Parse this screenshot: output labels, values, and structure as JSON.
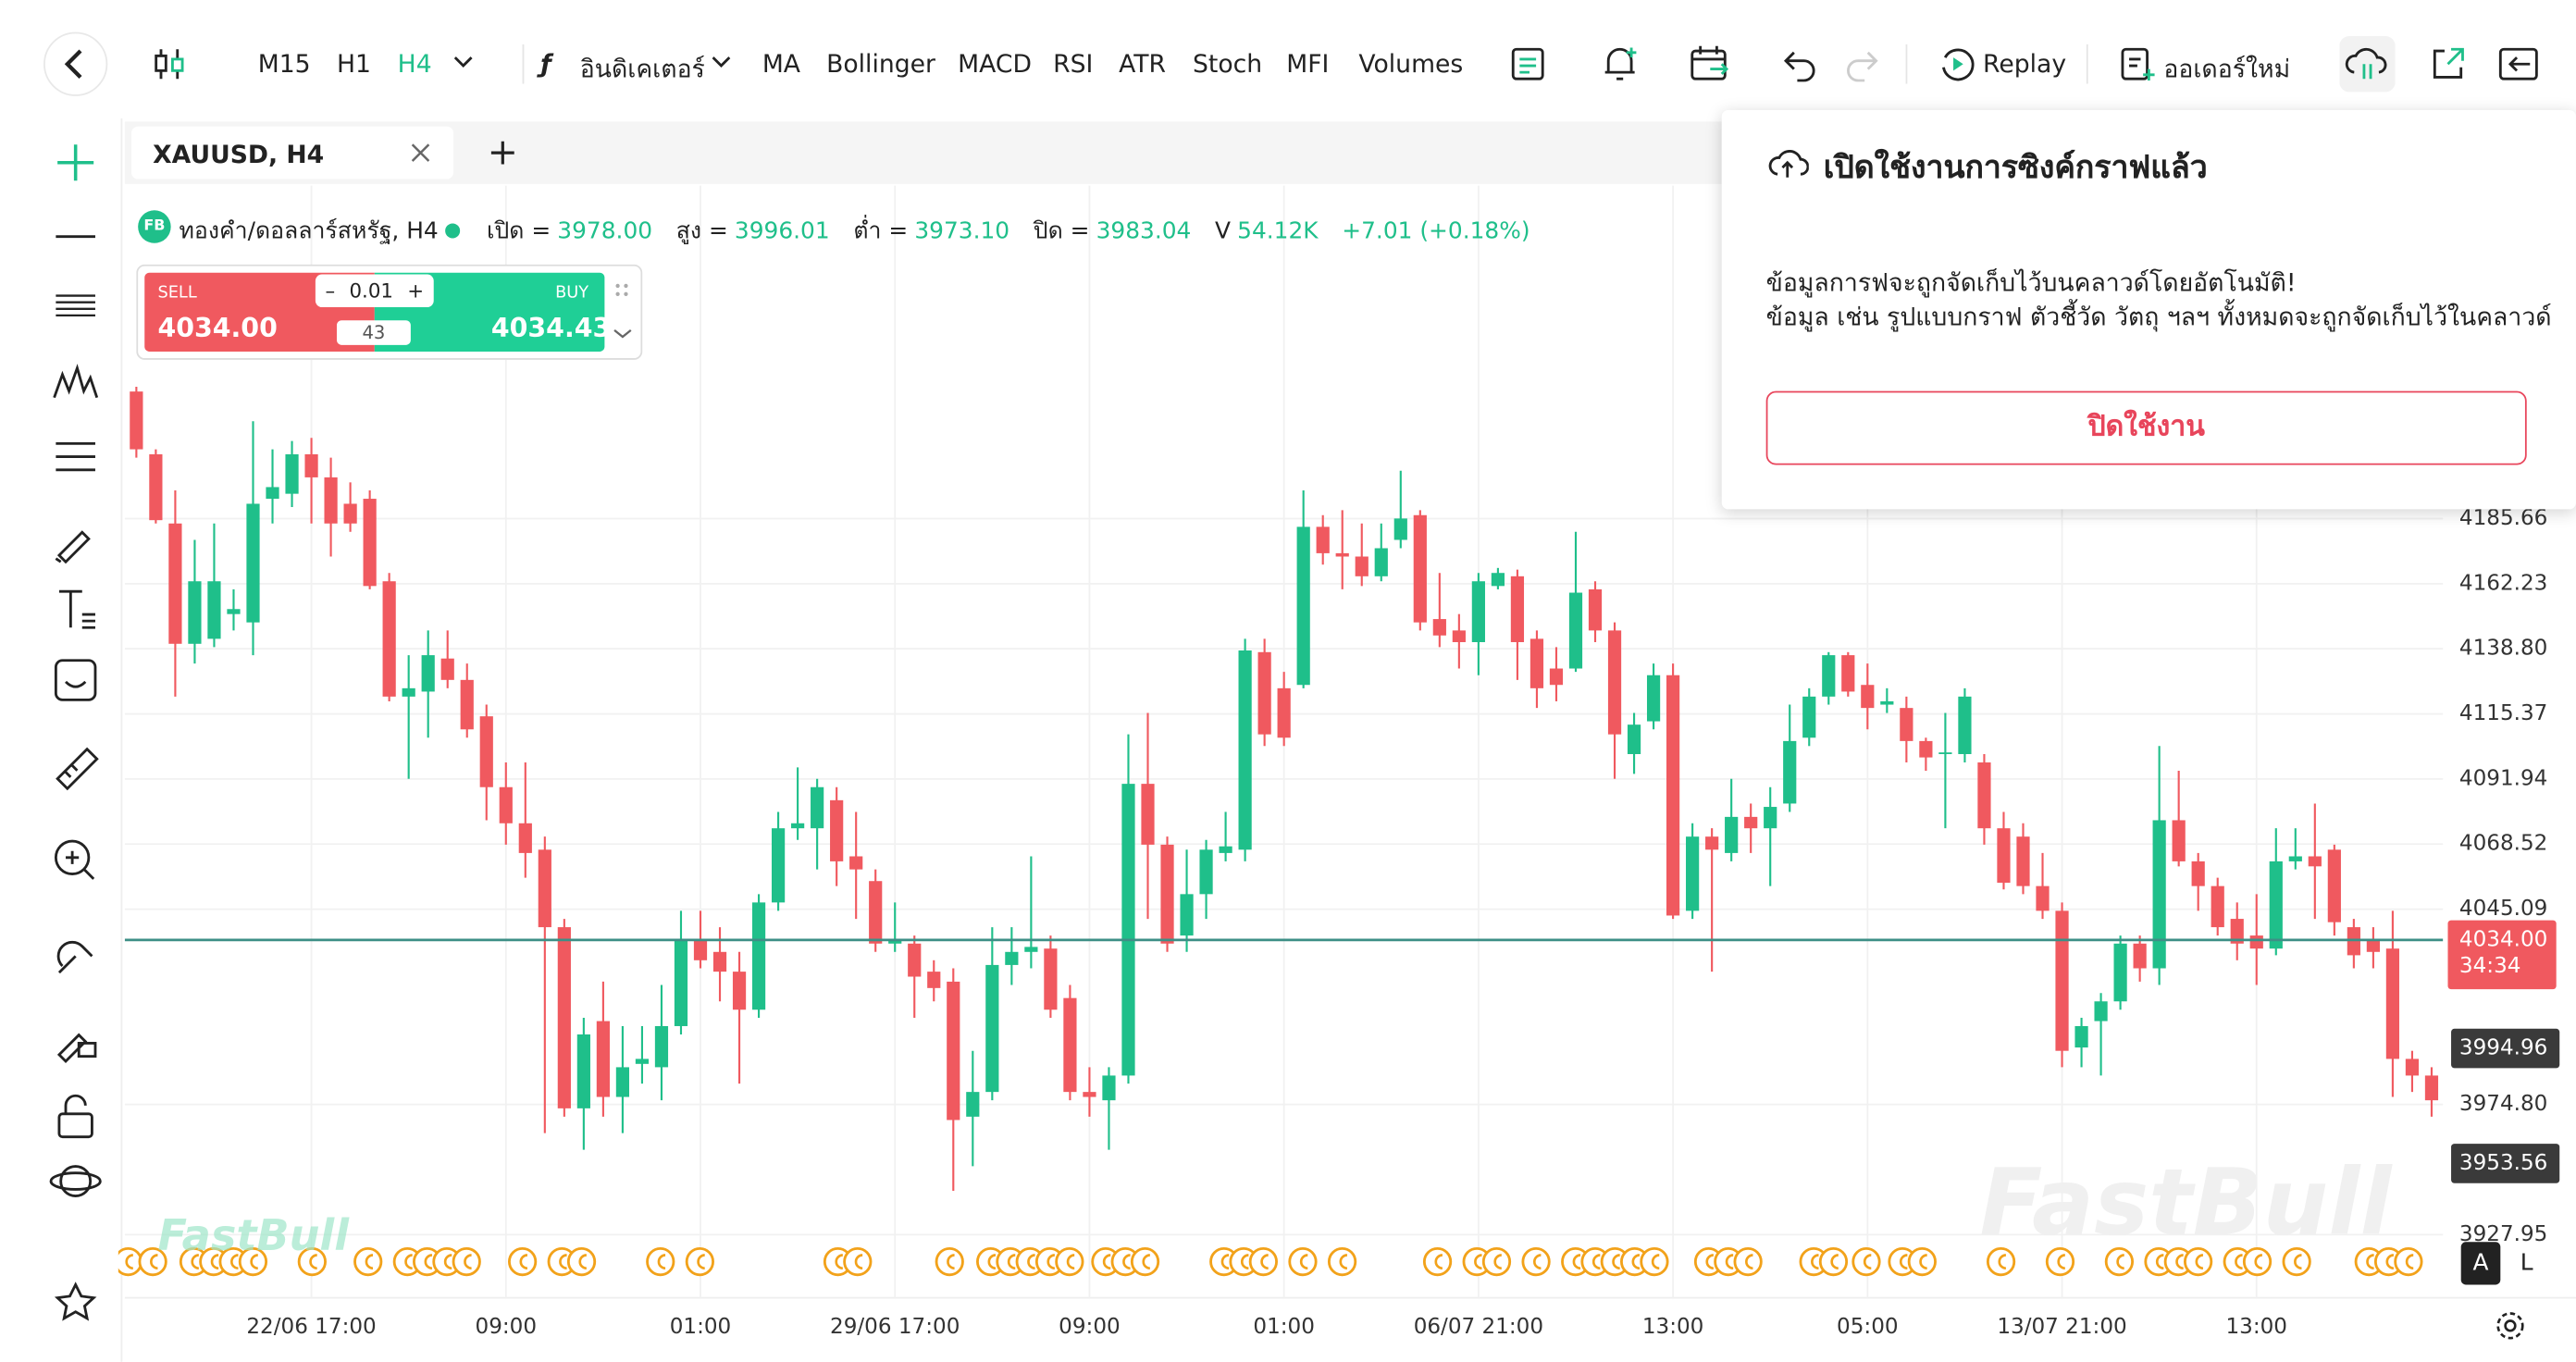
{
  "toolbar": {
    "timeframes": [
      "M15",
      "H1",
      "H4"
    ],
    "indicator_menu": "อินดิเคเตอร์",
    "indicators": [
      "MA",
      "Bollinger",
      "MACD",
      "RSI",
      "ATR",
      "Stoch",
      "MFI",
      "Volumes"
    ],
    "replay": "Replay",
    "new_order": "ออเดอร์ใหม่"
  },
  "tab": {
    "title": "XAUUSD, H4"
  },
  "info": {
    "badge": "FB",
    "symbol": "ทองคำ/ดอลลาร์สหรัฐ, H4",
    "open_label": "เปิด =",
    "open": "3978.00",
    "high_label": "สูง =",
    "high": "3996.01",
    "low_label": "ต่ำ =",
    "low": "3973.10",
    "close_label": "ปิด =",
    "close": "3983.04",
    "volume_label": "V",
    "volume": "54.12K",
    "change": "+7.01 (+0.18%)"
  },
  "trade": {
    "sell_label": "SELL",
    "sell_price": "4034.00",
    "lot": "0.01",
    "spread": "43",
    "buy_label": "BUY",
    "buy_price": "4034.43"
  },
  "popup": {
    "title": "เปิดใช้งานการซิงค์กราฟแล้ว",
    "line1": "ข้อมูลการฟจะถูกจัดเก็บไว้บนคลาวด์โดยอัตโนมัติ!",
    "line2": "ข้อมูล เช่น รูปแบบกราฟ ตัวชี้วัด วัตถุ ฯลฯ ทั้งหมดจะถูกจัดเก็บไว้ในคลาวด์",
    "button": "ปิดใช้งาน"
  },
  "watermark": "FastBull",
  "scale_buttons": [
    "A",
    "L"
  ],
  "chart_data": {
    "type": "candlestick",
    "up_color": "#1fbf8a",
    "down_color": "#f0595f",
    "grid": true,
    "categories": [
      null,
      null,
      null,
      null,
      null,
      null,
      null,
      null,
      null,
      "22/06 17:00",
      null,
      null,
      null,
      null,
      null,
      null,
      null,
      null,
      null,
      "09:00",
      null,
      null,
      null,
      null,
      null,
      null,
      null,
      null,
      null,
      "01:00",
      null,
      null,
      null,
      null,
      null,
      null,
      null,
      null,
      null,
      "29/06 17:00",
      null,
      null,
      null,
      null,
      null,
      null,
      null,
      null,
      null,
      "09:00",
      null,
      null,
      null,
      null,
      null,
      null,
      null,
      null,
      null,
      "01:00",
      null,
      null,
      null,
      null,
      null,
      null,
      null,
      null,
      null,
      "06/07 21:00",
      null,
      null,
      null,
      null,
      null,
      null,
      null,
      null,
      null,
      "13:00",
      null,
      null,
      null,
      null,
      null,
      null,
      null,
      null,
      null,
      "05:00",
      null,
      null,
      null,
      null,
      null,
      null,
      null,
      null,
      null,
      "13/07 21:00",
      null,
      null,
      null,
      null,
      null,
      null,
      null,
      null,
      null,
      "13:00",
      null,
      null,
      null,
      null,
      null,
      null,
      null,
      null,
      null
    ],
    "open": [
      4231.4,
      4208.8,
      4183.9,
      4140.6,
      4142.4,
      4151.3,
      4148.3,
      4192.8,
      4194.6,
      4208.8,
      4200.5,
      4191.0,
      4192.8,
      4163.1,
      4121.6,
      4123.4,
      4135.3,
      4127.6,
      4114.5,
      4089.0,
      4076.0,
      4066.5,
      4038.6,
      3973.4,
      4004.8,
      3977.5,
      3989.4,
      3988.2,
      4003.0,
      4034.4,
      4029.7,
      4022.6,
      4008.9,
      4047.5,
      4074.2,
      4074.2,
      4084.3,
      4064.1,
      4055.2,
      4032.7,
      4032.7,
      4022.6,
      4019.0,
      3970.4,
      3979.3,
      4025.0,
      4029.7,
      4030.9,
      4013.1,
      3979.3,
      3976.3,
      3985.2,
      4090.2,
      4068.3,
      4035.6,
      4050.5,
      4065.3,
      4066.5,
      4137.6,
      4124.6,
      4125.8,
      4182.7,
      4173.2,
      4172.0,
      4164.9,
      4178.0,
      4186.9,
      4149.5,
      4145.4,
      4141.2,
      4161.4,
      4164.9,
      4142.4,
      4131.7,
      4131.7,
      4160.2,
      4145.4,
      4100.9,
      4112.7,
      4129.3,
      4044.5,
      4071.2,
      4065.3,
      4078.3,
      4074.2,
      4083.1,
      4106.8,
      4121.6,
      4136.5,
      4125.8,
      4118.7,
      4117.5,
      4105.6,
      4100.9,
      4100.9,
      4097.9,
      4074.2,
      4071.2,
      4053.4,
      4044.5,
      3995.3,
      4004.8,
      4011.9,
      4032.7,
      4023.8,
      4077.1,
      4062.3,
      4053.4,
      4041.6,
      4035.6,
      4030.9,
      4062.3,
      4064.1,
      4066.5,
      4038.6,
      4034.4,
      4030.9,
      3991.2,
      3985.2
    ],
    "high": [
      4233.1,
      4210.6,
      4195.8,
      4178.0,
      4183.9,
      4160.2,
      4220.7,
      4210.6,
      4213.6,
      4214.7,
      4207.6,
      4198.7,
      4195.8,
      4166.1,
      4136.5,
      4145.4,
      4145.4,
      4133.5,
      4118.7,
      4097.9,
      4097.9,
      4071.2,
      4041.6,
      4006.0,
      4019.0,
      4003.0,
      4003.0,
      4017.8,
      4044.5,
      4044.5,
      4038.6,
      4029.7,
      4050.5,
      4080.1,
      4096.1,
      4092.0,
      4089.0,
      4080.1,
      4059.4,
      4047.5,
      4035.6,
      4026.7,
      4023.8,
      3994.1,
      4038.6,
      4038.6,
      4064.1,
      4035.6,
      4017.8,
      3988.2,
      3988.2,
      4108.0,
      4115.7,
      4071.2,
      4066.5,
      4070.0,
      4080.1,
      4142.4,
      4142.4,
      4130.5,
      4195.8,
      4186.9,
      4188.7,
      4183.9,
      4183.9,
      4202.9,
      4188.7,
      4166.1,
      4151.3,
      4166.1,
      4167.9,
      4167.3,
      4145.4,
      4139.4,
      4180.9,
      4163.1,
      4148.3,
      4115.7,
      4133.5,
      4133.5,
      4076.0,
      4074.2,
      4092.0,
      4083.1,
      4089.0,
      4118.7,
      4124.6,
      4137.6,
      4137.6,
      4133.5,
      4124.6,
      4121.6,
      4106.8,
      4115.7,
      4124.6,
      4100.9,
      4080.1,
      4076.0,
      4065.3,
      4047.5,
      4006.0,
      4014.9,
      4035.6,
      4035.6,
      4103.8,
      4094.9,
      4065.3,
      4056.4,
      4047.5,
      4050.5,
      4074.2,
      4074.2,
      4083.1,
      4068.3,
      4041.6,
      4038.6,
      4044.5,
      3994.1,
      3988.2
    ],
    "low": [
      4207.6,
      4183.9,
      4121.6,
      4133.5,
      4139.4,
      4145.4,
      4136.5,
      4183.9,
      4189.8,
      4183.9,
      4172.0,
      4180.9,
      4160.2,
      4119.9,
      4092.0,
      4106.8,
      4124.6,
      4106.8,
      4077.1,
      4068.3,
      4056.4,
      3964.5,
      3970.4,
      3958.5,
      3970.4,
      3964.5,
      3982.3,
      3976.3,
      4000.0,
      4023.8,
      4011.9,
      3982.3,
      4006.0,
      4044.5,
      4070.0,
      4059.4,
      4053.4,
      4041.6,
      4029.7,
      4029.7,
      4006.0,
      4011.9,
      3943.7,
      3952.6,
      3976.3,
      4017.8,
      4023.8,
      4006.0,
      3976.3,
      3970.4,
      3958.5,
      3982.3,
      4041.6,
      4029.7,
      4029.7,
      4041.6,
      4062.3,
      4062.3,
      4103.8,
      4103.8,
      4124.6,
      4169.1,
      4160.2,
      4161.4,
      4163.1,
      4175.0,
      4145.4,
      4139.4,
      4131.7,
      4129.3,
      4160.2,
      4127.6,
      4117.5,
      4119.9,
      4130.5,
      4141.2,
      4092.0,
      4093.8,
      4109.8,
      4041.6,
      4041.6,
      4022.6,
      4062.3,
      4065.3,
      4053.4,
      4080.1,
      4103.8,
      4118.7,
      4121.6,
      4109.8,
      4115.7,
      4097.9,
      4094.9,
      4074.2,
      4097.9,
      4068.3,
      4052.2,
      4050.5,
      4041.6,
      3988.2,
      3988.2,
      3985.2,
      4008.9,
      4019.0,
      4017.8,
      4060.5,
      4044.5,
      4035.6,
      4026.7,
      4017.8,
      4028.5,
      4059.4,
      4041.6,
      4035.6,
      4023.8,
      4023.8,
      3977.5,
      3979.3,
      3970.4
    ],
    "close": [
      4210.6,
      4185.1,
      4140.6,
      4163.1,
      4163.1,
      4153.1,
      4191.0,
      4197.0,
      4208.8,
      4200.5,
      4183.9,
      4183.9,
      4161.4,
      4121.6,
      4124.6,
      4136.5,
      4127.6,
      4109.8,
      4089.0,
      4076.0,
      4065.3,
      4038.6,
      3973.4,
      4000.0,
      3977.5,
      3988.2,
      3991.2,
      4003.0,
      4034.4,
      4026.7,
      4022.6,
      4008.9,
      4047.5,
      4074.2,
      4076.0,
      4089.0,
      4062.3,
      4059.4,
      4032.7,
      4033.9,
      4020.8,
      4016.7,
      3969.2,
      3979.3,
      4025.0,
      4029.7,
      4031.5,
      4008.9,
      3979.3,
      3977.5,
      3985.2,
      4090.2,
      4068.3,
      4032.7,
      4050.5,
      4066.5,
      4067.7,
      4138.2,
      4108.0,
      4106.8,
      4182.7,
      4173.2,
      4172.0,
      4164.9,
      4175.0,
      4185.7,
      4148.3,
      4143.6,
      4141.2,
      4163.1,
      4166.1,
      4141.2,
      4124.6,
      4125.8,
      4159.0,
      4145.4,
      4108.0,
      4111.5,
      4129.3,
      4042.8,
      4071.2,
      4066.5,
      4078.3,
      4074.2,
      4081.9,
      4105.6,
      4121.6,
      4136.5,
      4123.4,
      4117.5,
      4119.9,
      4105.6,
      4099.7,
      4101.5,
      4121.6,
      4074.2,
      4054.6,
      4053.4,
      4044.5,
      3994.1,
      4003.0,
      4011.9,
      4032.7,
      4023.8,
      4077.1,
      4062.3,
      4053.4,
      4038.6,
      4032.7,
      4030.9,
      4062.3,
      4064.1,
      4060.5,
      4040.4,
      4028.5,
      4029.7,
      3991.2,
      3985.2,
      3976.3
    ],
    "ylim": [
      3905.2,
      4305.5
    ],
    "yticks": [
      4185.66,
      4162.23,
      {
        "value": 4138.8,
        "label": "4138.80"
      },
      4115.37,
      4091.94,
      4068.52,
      4045.09,
      {
        "value": 3974.8,
        "label": "3974.80"
      },
      3927.95
    ],
    "price_line": {
      "value": 4034,
      "label": "4034.00",
      "countdown": "34:34",
      "color": "#f0595f",
      "line_color": "#3d8f86"
    },
    "markers": [
      {
        "value": 3994.96,
        "color": "#3a3a3a"
      },
      {
        "value": 3953.56,
        "color": "#3a3a3a"
      }
    ]
  }
}
